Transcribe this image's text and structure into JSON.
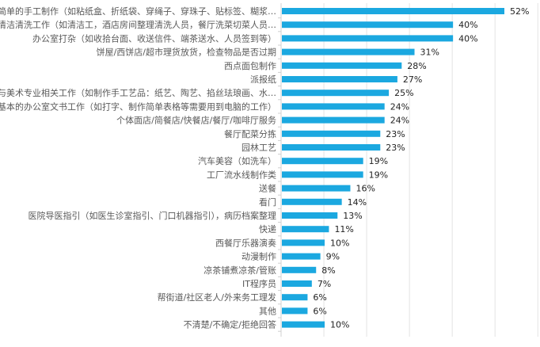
{
  "chart_data": {
    "type": "bar",
    "orientation": "horizontal",
    "categories": [
      "简单的手工制作（如粘纸盒、折纸袋、穿绳子、穿珠子、贴标签、糊浆…",
      "清洁清洗工作（如清洁工，酒店房间整理清洗人员，餐厅洗菜切菜人员…",
      "办公室打杂（如收拾台面、收送信件、端茶送水、人员签到等）",
      "饼屋/西饼店/超市理货放货，检查物品是否过期",
      "西点面包制作",
      "派报纸",
      "与美术专业相关工作（如制作手工艺品：纸艺、陶艺、掐丝珐琅画、水…",
      "基本的办公室文书工作（如打字、制作简单表格等需要用到电脑的工作）",
      "个体面店/简餐店/快餐店/餐厅/咖啡厅服务",
      "餐厅配菜分拣",
      "园林工艺",
      "汽车美容（如洗车）",
      "工厂流水线制作类",
      "送餐",
      "看门",
      "医院导医指引（如医生诊室指引、门口机器指引），病历档案整理",
      "快递",
      "西餐厅乐器演奏",
      "动漫制作",
      "凉茶铺煮凉茶/管账",
      "IT程序员",
      "帮街道/社区老人/外来务工理发",
      "其他",
      "不清楚/不确定/拒绝回答"
    ],
    "values": [
      52,
      40,
      40,
      31,
      28,
      27,
      25,
      24,
      24,
      23,
      23,
      19,
      19,
      16,
      14,
      13,
      11,
      10,
      9,
      8,
      7,
      6,
      6,
      10
    ],
    "value_suffix": "%",
    "xlim": [
      0,
      60
    ],
    "grid": true,
    "bar_color": "#1ba8e0"
  }
}
